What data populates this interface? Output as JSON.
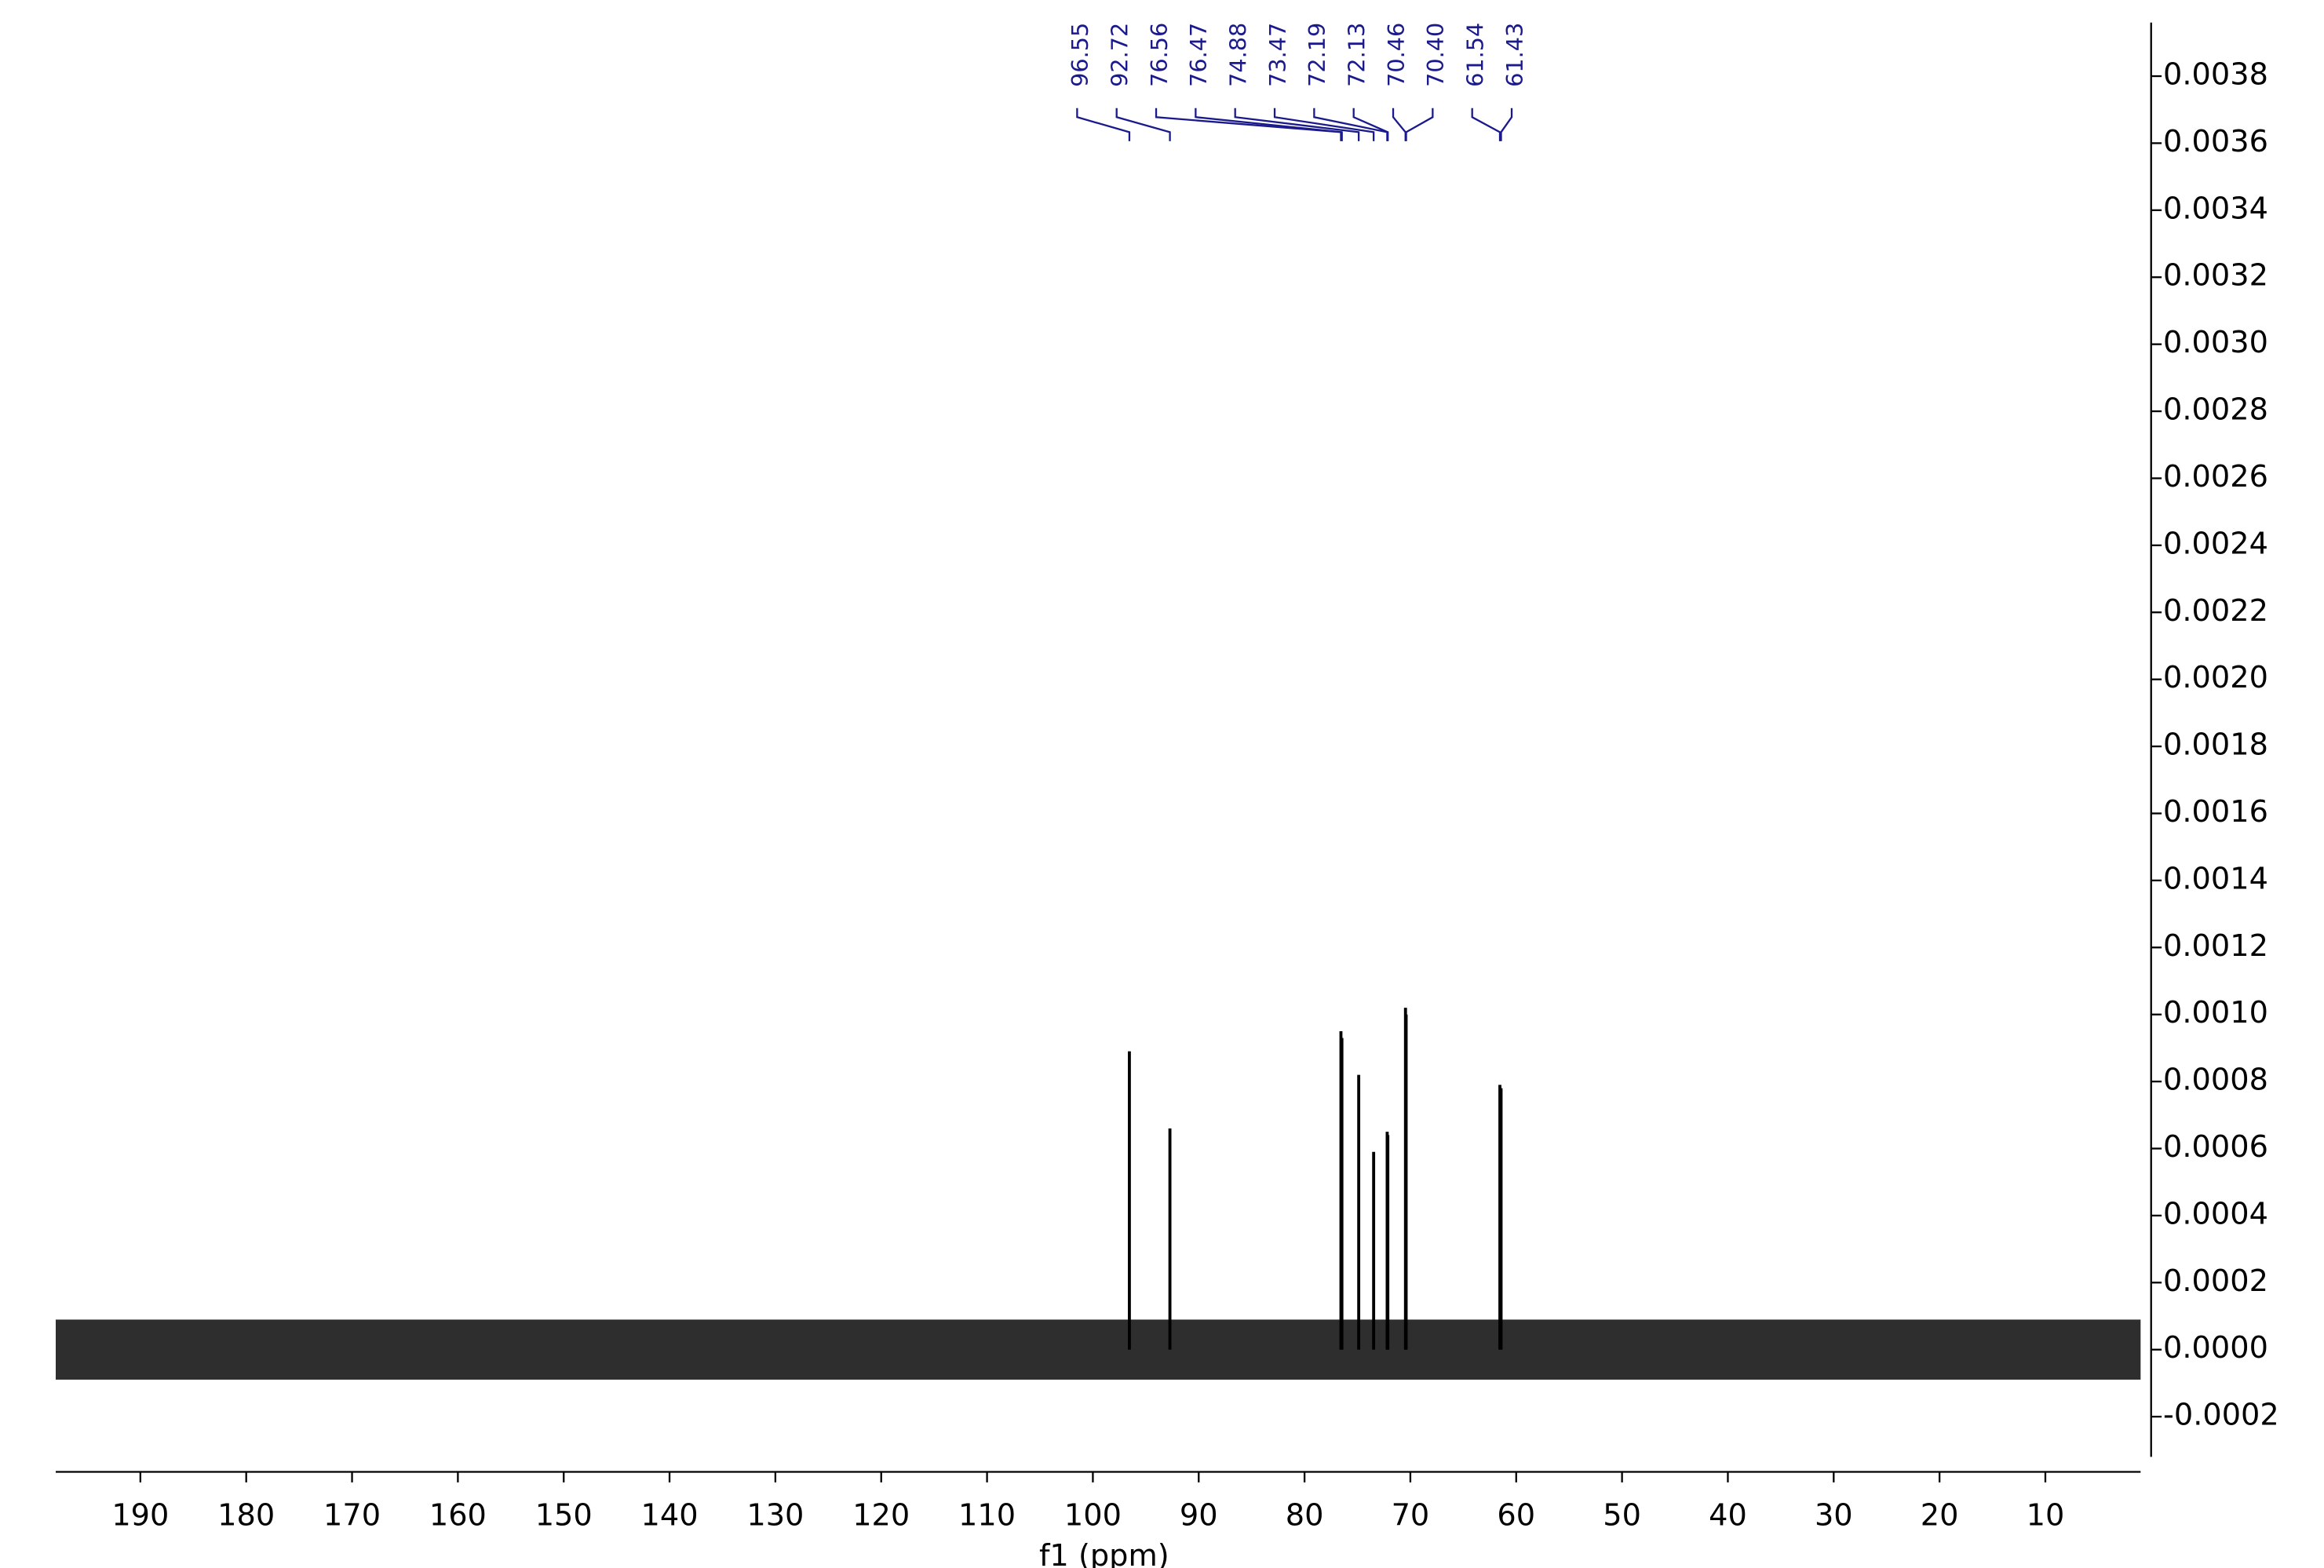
{
  "chart_data": {
    "type": "spectrum",
    "xlabel": "f1 (ppm)",
    "xlim": [
      198,
      1
    ],
    "xticks": [
      190,
      180,
      170,
      160,
      150,
      140,
      130,
      120,
      110,
      100,
      90,
      80,
      70,
      60,
      50,
      40,
      30,
      20,
      10
    ],
    "ylim": [
      -0.00032,
      0.00396
    ],
    "yticks": [
      {
        "value": -0.0002,
        "label": "-0.0002"
      },
      {
        "value": 0,
        "label": "0.0000"
      },
      {
        "value": 0.0002,
        "label": "0.0002"
      },
      {
        "value": 0.0004,
        "label": "0.0004"
      },
      {
        "value": 0.0006,
        "label": "0.0006"
      },
      {
        "value": 0.0008,
        "label": "0.0008"
      },
      {
        "value": 0.001,
        "label": "0.0010"
      },
      {
        "value": 0.0012,
        "label": "0.0012"
      },
      {
        "value": 0.0014,
        "label": "0.0014"
      },
      {
        "value": 0.0016,
        "label": "0.0016"
      },
      {
        "value": 0.0018,
        "label": "0.0018"
      },
      {
        "value": 0.002,
        "label": "0.0020"
      },
      {
        "value": 0.0022,
        "label": "0.0022"
      },
      {
        "value": 0.0024,
        "label": "0.0024"
      },
      {
        "value": 0.0026,
        "label": "0.0026"
      },
      {
        "value": 0.0028,
        "label": "0.0028"
      },
      {
        "value": 0.003,
        "label": "0.0030"
      },
      {
        "value": 0.0032,
        "label": "0.0032"
      },
      {
        "value": 0.0034,
        "label": "0.0034"
      },
      {
        "value": 0.0036,
        "label": "0.0036"
      },
      {
        "value": 0.0038,
        "label": "0.0038"
      }
    ],
    "color": "#000000",
    "label_color": "#1a1a8c",
    "x": [
      96.55,
      92.72,
      76.56,
      76.47,
      74.88,
      73.47,
      72.19,
      72.13,
      70.46,
      70.4,
      61.54,
      61.43
    ],
    "values": [
      0.00089,
      0.00066,
      0.00095,
      0.00093,
      0.00082,
      0.00059,
      0.00065,
      0.00064,
      0.00102,
      0.001,
      0.00079,
      0.00078
    ],
    "peak_labels": [
      "96.55",
      "92.72",
      "76.56",
      "76.47",
      "74.88",
      "73.47",
      "72.19",
      "72.13",
      "70.46",
      "70.40",
      "61.54",
      "61.43"
    ]
  }
}
